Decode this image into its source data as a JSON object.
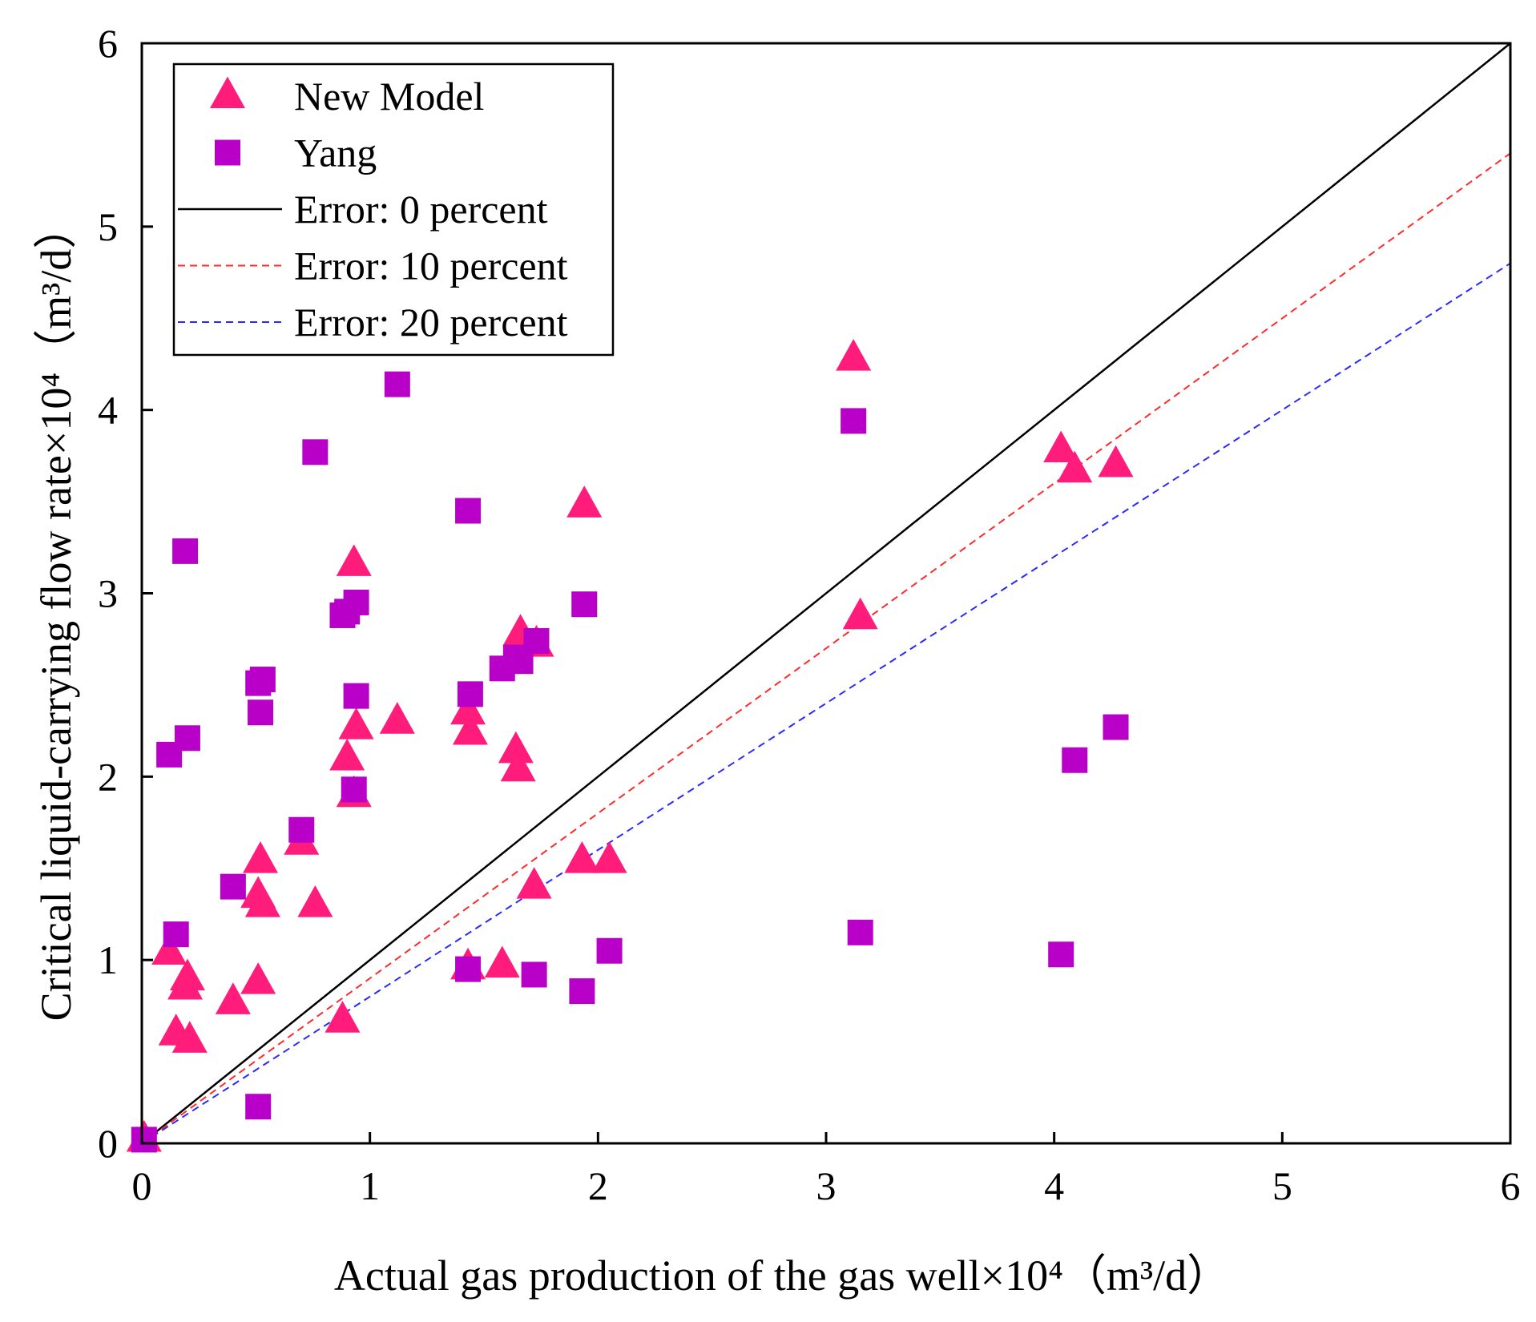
{
  "chart_data": {
    "type": "scatter",
    "title": "",
    "xlabel": "Actual gas production of the gas well×10⁴（m³/d）",
    "ylabel": "Critical liquid-carrying flow rate×10⁴（m³/d）",
    "xlim": [
      0,
      6
    ],
    "ylim": [
      0,
      6
    ],
    "x_ticks": [
      "0",
      "1",
      "2",
      "3",
      "4",
      "5",
      "6"
    ],
    "y_ticks": [
      "0",
      "1",
      "2",
      "3",
      "4",
      "5",
      "6"
    ],
    "grid": false,
    "legend_position": "top-left",
    "series": [
      {
        "name": "New Model",
        "marker": "triangle",
        "color": "#ff1c7a",
        "points": [
          [
            0.01,
            0.02
          ],
          [
            0.12,
            1.04
          ],
          [
            0.15,
            0.6
          ],
          [
            0.19,
            0.85
          ],
          [
            0.2,
            0.9
          ],
          [
            0.21,
            0.56
          ],
          [
            0.4,
            0.77
          ],
          [
            0.51,
            1.35
          ],
          [
            0.51,
            0.88
          ],
          [
            0.52,
            1.54
          ],
          [
            0.53,
            1.3
          ],
          [
            0.7,
            1.64
          ],
          [
            0.76,
            1.3
          ],
          [
            0.88,
            0.67
          ],
          [
            0.9,
            2.1
          ],
          [
            0.93,
            3.16
          ],
          [
            0.93,
            1.9
          ],
          [
            0.94,
            2.27
          ],
          [
            1.12,
            2.3
          ],
          [
            1.43,
            2.35
          ],
          [
            1.44,
            2.24
          ],
          [
            1.43,
            0.96
          ],
          [
            1.58,
            0.97
          ],
          [
            1.64,
            2.14
          ],
          [
            1.65,
            2.04
          ],
          [
            1.66,
            2.78
          ],
          [
            1.72,
            1.4
          ],
          [
            1.73,
            2.72
          ],
          [
            1.93,
            1.54
          ],
          [
            1.94,
            3.48
          ],
          [
            2.05,
            1.54
          ],
          [
            3.12,
            4.28
          ],
          [
            3.15,
            2.87
          ],
          [
            4.03,
            3.78
          ],
          [
            4.09,
            3.67
          ],
          [
            4.27,
            3.7
          ]
        ]
      },
      {
        "name": "Yang",
        "marker": "square",
        "color": "#b800c8",
        "points": [
          [
            0.01,
            0.02
          ],
          [
            0.12,
            2.12
          ],
          [
            0.15,
            1.14
          ],
          [
            0.19,
            3.23
          ],
          [
            0.2,
            2.21
          ],
          [
            0.4,
            1.4
          ],
          [
            0.51,
            0.2
          ],
          [
            0.51,
            2.51
          ],
          [
            0.52,
            2.35
          ],
          [
            0.53,
            2.53
          ],
          [
            0.7,
            1.71
          ],
          [
            0.76,
            3.77
          ],
          [
            0.88,
            2.88
          ],
          [
            0.9,
            2.9
          ],
          [
            0.93,
            1.93
          ],
          [
            0.94,
            2.44
          ],
          [
            0.94,
            2.95
          ],
          [
            1.12,
            4.14
          ],
          [
            1.43,
            3.45
          ],
          [
            1.44,
            2.45
          ],
          [
            1.43,
            0.95
          ],
          [
            1.58,
            2.59
          ],
          [
            1.64,
            2.65
          ],
          [
            1.66,
            2.63
          ],
          [
            1.72,
            0.92
          ],
          [
            1.73,
            2.74
          ],
          [
            1.93,
            0.83
          ],
          [
            1.94,
            2.94
          ],
          [
            2.05,
            1.05
          ],
          [
            3.12,
            3.94
          ],
          [
            3.15,
            1.15
          ],
          [
            4.03,
            1.03
          ],
          [
            4.09,
            2.09
          ],
          [
            4.27,
            2.27
          ]
        ]
      },
      {
        "name": "Error: 0 percent",
        "marker": "line",
        "style": "solid",
        "color": "#000000",
        "x": [
          0,
          6
        ],
        "values": [
          0,
          6
        ]
      },
      {
        "name": "Error: 10 percent",
        "marker": "line",
        "style": "dashed",
        "color": "#ff2a2a",
        "x": [
          0,
          6
        ],
        "values": [
          0,
          5.4
        ]
      },
      {
        "name": "Error: 20 percent",
        "marker": "line",
        "style": "dashed",
        "color": "#2a2aff",
        "x": [
          0,
          6
        ],
        "values": [
          0,
          4.8
        ]
      }
    ]
  }
}
